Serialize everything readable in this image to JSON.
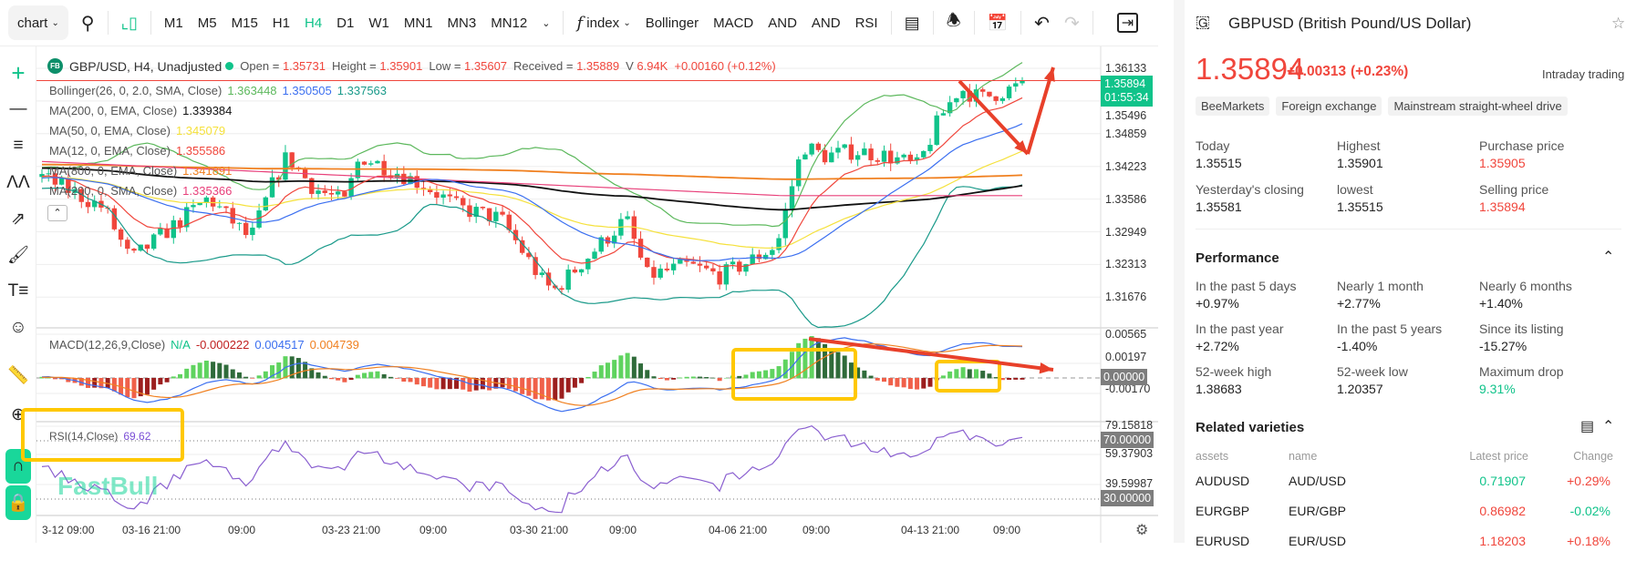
{
  "toolbar": {
    "chart_select": "chart",
    "timeframes": [
      "M1",
      "M5",
      "M15",
      "H1",
      "H4",
      "D1",
      "W1",
      "MN1",
      "MN3",
      "MN12"
    ],
    "active_timeframe": "H4",
    "index_label": "index",
    "indicators": [
      "Bollinger",
      "MACD",
      "AND",
      "AND",
      "RSI"
    ]
  },
  "legend": {
    "symbol_badge": "FB",
    "title": "GBP/USD, H4, Unadjusted",
    "open_label": "Open =",
    "open": "1.35731",
    "high_label": "Height =",
    "high": "1.35901",
    "low_label": "Low =",
    "low": "1.35607",
    "close_label": "Received =",
    "close": "1.35889",
    "volume_label": "V",
    "volume": "6.94K",
    "change": "+0.00160 (+0.12%)",
    "indicators": [
      {
        "name": "Bollinger(26, 0, 2.0, SMA, Close)",
        "values": [
          "1.363448",
          "1.350505",
          "1.337563"
        ],
        "colors": [
          "#5cb85c",
          "#3b6ff0",
          "#1a9a8a"
        ]
      },
      {
        "name": "MA(200, 0, EMA, Close)",
        "values": [
          "1.339384"
        ],
        "colors": [
          "#111111"
        ]
      },
      {
        "name": "MA(50, 0, EMA, Close)",
        "values": [
          "1.345079"
        ],
        "colors": [
          "#f5e13c"
        ]
      },
      {
        "name": "MA(12, 0, EMA, Close)",
        "values": [
          "1.355586"
        ],
        "colors": [
          "#f0463c"
        ]
      },
      {
        "name": "MA(800, 0, EMA, Close)",
        "values": [
          "1.341891"
        ],
        "colors": [
          "#f08020"
        ]
      },
      {
        "name": "MA(200, 0, SMA, Close)",
        "values": [
          "1.335366"
        ],
        "colors": [
          "#e8407a"
        ]
      }
    ]
  },
  "price_axis": [
    "1.36133",
    "1.35496",
    "1.34859",
    "1.34223",
    "1.33586",
    "1.32949",
    "1.32313",
    "1.31676"
  ],
  "current_price": {
    "price": "1.35894",
    "countdown": "01:55:34"
  },
  "macd": {
    "name": "MACD(12,26,9,Close)",
    "na": "N/A",
    "values": [
      "-0.000222",
      "0.004517",
      "0.004739"
    ],
    "axis": [
      "0.00565",
      "0.00197",
      "0.00000",
      "-0.00170"
    ]
  },
  "rsi": {
    "name": "RSI(14,Close)",
    "value": "69.62",
    "axis": [
      "79.15818",
      "70.00000",
      "59.37903",
      "39.59987",
      "30.00000"
    ]
  },
  "time_axis": [
    "3-12 09:00",
    "03-16 21:00",
    "09:00",
    "03-23 21:00",
    "09:00",
    "03-30 21:00",
    "09:00",
    "04-06 21:00",
    "09:00",
    "04-13 21:00",
    "09:00"
  ],
  "watermark": "FastBull",
  "colors": {
    "up": "#10c38a",
    "down": "#f0463c",
    "accent": "#10c38a",
    "annotation_box": "#ffc800",
    "annotation_arrow": "#e8402a"
  },
  "panel": {
    "title": "GBPUSD (British Pound/US Dollar)",
    "price": "1.35894",
    "change": "+0.00313",
    "change_pct": "(+0.23%)",
    "session": "Intraday trading",
    "tags": [
      "BeeMarkets",
      "Foreign exchange",
      "Mainstream straight-wheel drive"
    ],
    "stats": [
      {
        "label": "Today",
        "value": "1.35515"
      },
      {
        "label": "Highest",
        "value": "1.35901"
      },
      {
        "label": "Purchase price",
        "value": "1.35905"
      },
      {
        "label": "Yesterday's closing",
        "value": "1.35581"
      },
      {
        "label": "lowest",
        "value": "1.35515"
      },
      {
        "label": "Selling price",
        "value": "1.35894"
      }
    ],
    "performance_title": "Performance",
    "performance": [
      {
        "label": "In the past 5 days",
        "value": "+0.97%"
      },
      {
        "label": "Nearly 1 month",
        "value": "+2.77%"
      },
      {
        "label": "Nearly 6 months",
        "value": "+1.40%"
      },
      {
        "label": "In the past year",
        "value": "+2.72%"
      },
      {
        "label": "In the past 5 years",
        "value": "-1.40%"
      },
      {
        "label": "Since its listing",
        "value": "-15.27%"
      },
      {
        "label": "52-week high",
        "value": "1.38683"
      },
      {
        "label": "52-week low",
        "value": "1.20357"
      },
      {
        "label": "Maximum drop",
        "value": "9.31%"
      }
    ],
    "related_title": "Related varieties",
    "related_headers": [
      "assets",
      "name",
      "Latest price",
      "Change"
    ],
    "related": [
      {
        "asset": "AUDUSD",
        "name": "AUD/USD",
        "price": "0.71907",
        "change": "+0.29%",
        "price_dir": "up",
        "change_dir": "up"
      },
      {
        "asset": "EURGBP",
        "name": "EUR/GBP",
        "price": "0.86982",
        "change": "-0.02%",
        "price_dir": "down",
        "change_dir": "down"
      },
      {
        "asset": "EURUSD",
        "name": "EUR/USD",
        "price": "1.18203",
        "change": "+0.18%",
        "price_dir": "down",
        "change_dir": "up"
      }
    ]
  }
}
